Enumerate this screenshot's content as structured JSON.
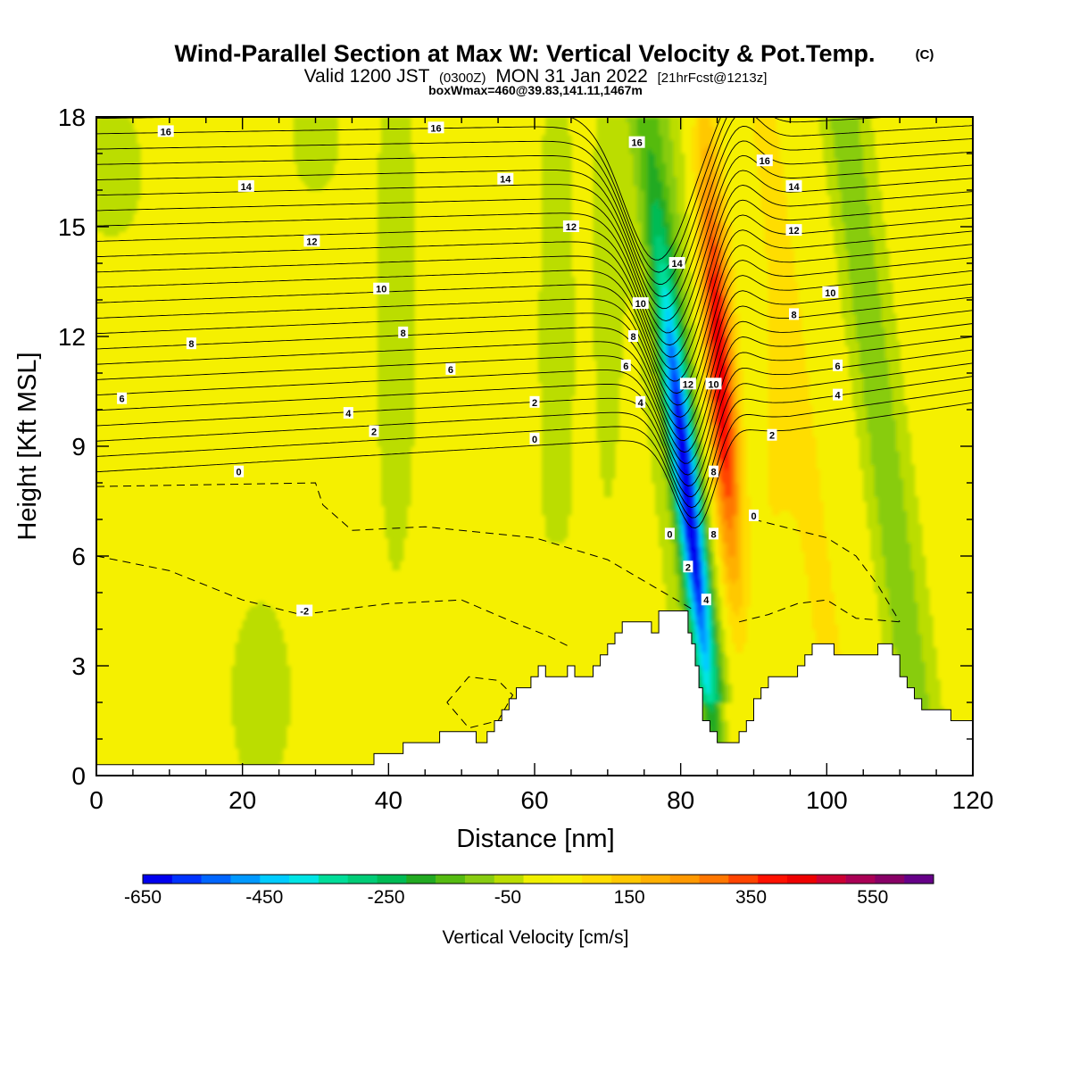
{
  "title": {
    "main": "Wind-Parallel Section at Max W: Vertical Velocity & Pot.Temp.",
    "copyright": "(C)",
    "valid_prefix": "Valid 1200 JST",
    "valid_utc": "(0300Z)",
    "valid_date": "MON 31 Jan 2022",
    "forecast": "[21hrFcst@1213z]",
    "boxinfo": "boxWmax=460@39.83,141.11,1467m"
  },
  "chart_data": {
    "type": "heatmap",
    "xlabel": "Distance [nm]",
    "ylabel": "Height [Kft MSL]",
    "xlim": [
      0,
      120
    ],
    "ylim": [
      0,
      18
    ],
    "x_ticks": [
      "0",
      "20",
      "40",
      "60",
      "80",
      "100",
      "120"
    ],
    "y_ticks": [
      "0",
      "3",
      "6",
      "9",
      "12",
      "15",
      "18"
    ],
    "colorbar": {
      "label": "Vertical Velocity [cm/s]",
      "min": -650,
      "max": 650,
      "step": 50,
      "tick_labels": [
        "-650",
        "-450",
        "-250",
        "-50",
        "150",
        "350",
        "550"
      ],
      "colors": [
        "#0000ee",
        "#0033ff",
        "#0066ff",
        "#0099ff",
        "#00ccff",
        "#00e5e5",
        "#00dd99",
        "#00cc77",
        "#00bb55",
        "#22aa22",
        "#55bb11",
        "#88cc11",
        "#bbdd00",
        "#f0f000",
        "#f5f000",
        "#ffdd00",
        "#ffc800",
        "#ffb000",
        "#ff9900",
        "#ff7700",
        "#ff4400",
        "#ff1100",
        "#ee0000",
        "#cc0033",
        "#aa0055",
        "#880066",
        "#660088"
      ]
    },
    "max_updraft": {
      "x": 85.5,
      "z": 10.5,
      "w": 460
    },
    "max_downdraft": {
      "x": 81,
      "z": 7.5,
      "w": -600
    },
    "theta_contour_labels": [
      {
        "x": 9.5,
        "z": 17.6,
        "label": "16"
      },
      {
        "x": 46.5,
        "z": 17.7,
        "label": "16"
      },
      {
        "x": 74,
        "z": 17.3,
        "label": "16"
      },
      {
        "x": 91.5,
        "z": 16.8,
        "label": "16"
      },
      {
        "x": 20.5,
        "z": 16.1,
        "label": "14"
      },
      {
        "x": 56,
        "z": 16.3,
        "label": "14"
      },
      {
        "x": 95.5,
        "z": 16.1,
        "label": "14"
      },
      {
        "x": 29.5,
        "z": 14.6,
        "label": "12"
      },
      {
        "x": 65,
        "z": 15.0,
        "label": "12"
      },
      {
        "x": 95.5,
        "z": 14.9,
        "label": "12"
      },
      {
        "x": 39,
        "z": 13.3,
        "label": "10"
      },
      {
        "x": 74.5,
        "z": 12.9,
        "label": "10"
      },
      {
        "x": 100.5,
        "z": 13.2,
        "label": "10"
      },
      {
        "x": 79.5,
        "z": 14.0,
        "label": "14"
      },
      {
        "x": 42,
        "z": 12.1,
        "label": "8"
      },
      {
        "x": 13,
        "z": 11.8,
        "label": "8"
      },
      {
        "x": 73.5,
        "z": 12.0,
        "label": "8"
      },
      {
        "x": 95.5,
        "z": 12.6,
        "label": "8"
      },
      {
        "x": 48.5,
        "z": 11.1,
        "label": "6"
      },
      {
        "x": 72.5,
        "z": 11.2,
        "label": "6"
      },
      {
        "x": 101.5,
        "z": 11.2,
        "label": "6"
      },
      {
        "x": 3.5,
        "z": 10.3,
        "label": "6"
      },
      {
        "x": 81,
        "z": 10.7,
        "label": "12"
      },
      {
        "x": 84.5,
        "z": 10.7,
        "label": "10"
      },
      {
        "x": 34.5,
        "z": 9.9,
        "label": "4"
      },
      {
        "x": 74.5,
        "z": 10.2,
        "label": "4"
      },
      {
        "x": 101.5,
        "z": 10.4,
        "label": "4"
      },
      {
        "x": 60,
        "z": 10.2,
        "label": "2"
      },
      {
        "x": 38,
        "z": 9.4,
        "label": "2"
      },
      {
        "x": 92.5,
        "z": 9.3,
        "label": "2"
      },
      {
        "x": 60,
        "z": 9.2,
        "label": "0"
      },
      {
        "x": 19.5,
        "z": 8.3,
        "label": "0"
      },
      {
        "x": 84.5,
        "z": 8.3,
        "label": "8"
      },
      {
        "x": 90,
        "z": 7.1,
        "label": "0"
      },
      {
        "x": 78.5,
        "z": 6.6,
        "label": "0"
      },
      {
        "x": 84.5,
        "z": 6.6,
        "label": "8"
      },
      {
        "x": 81,
        "z": 5.7,
        "label": "2"
      },
      {
        "x": 83.5,
        "z": 4.8,
        "label": "4"
      },
      {
        "x": 28.5,
        "z": 4.5,
        "label": "-2"
      }
    ],
    "terrain_profile": [
      [
        0,
        0.3
      ],
      [
        38,
        0.3
      ],
      [
        38,
        0.6
      ],
      [
        42,
        0.6
      ],
      [
        42,
        0.9
      ],
      [
        47,
        0.9
      ],
      [
        47,
        1.2
      ],
      [
        52,
        1.2
      ],
      [
        52,
        0.9
      ],
      [
        53.5,
        0.9
      ],
      [
        53.5,
        1.2
      ],
      [
        54.5,
        1.2
      ],
      [
        54.5,
        1.5
      ],
      [
        55.5,
        1.5
      ],
      [
        55.5,
        1.8
      ],
      [
        56.5,
        1.8
      ],
      [
        56.5,
        2.1
      ],
      [
        57.5,
        2.1
      ],
      [
        57.5,
        2.4
      ],
      [
        59.5,
        2.4
      ],
      [
        59.5,
        2.7
      ],
      [
        60.5,
        2.7
      ],
      [
        60.5,
        3.0
      ],
      [
        61.5,
        3.0
      ],
      [
        61.5,
        2.7
      ],
      [
        64.5,
        2.7
      ],
      [
        64.5,
        3.0
      ],
      [
        65.5,
        3.0
      ],
      [
        65.5,
        2.7
      ],
      [
        68,
        2.7
      ],
      [
        68,
        3.0
      ],
      [
        69,
        3.0
      ],
      [
        69,
        3.3
      ],
      [
        70,
        3.3
      ],
      [
        70,
        3.6
      ],
      [
        71,
        3.6
      ],
      [
        71,
        3.9
      ],
      [
        72,
        3.9
      ],
      [
        72,
        4.2
      ],
      [
        76,
        4.2
      ],
      [
        76,
        3.9
      ],
      [
        77,
        3.9
      ],
      [
        77,
        4.5
      ],
      [
        81,
        4.5
      ],
      [
        81,
        3.9
      ],
      [
        81.5,
        3.9
      ],
      [
        81.5,
        3.6
      ],
      [
        82,
        3.6
      ],
      [
        82,
        3.0
      ],
      [
        82.5,
        3.0
      ],
      [
        82.5,
        2.4
      ],
      [
        83,
        2.4
      ],
      [
        83,
        1.5
      ],
      [
        84,
        1.5
      ],
      [
        84,
        1.2
      ],
      [
        85,
        1.2
      ],
      [
        85,
        0.9
      ],
      [
        88,
        0.9
      ],
      [
        88,
        1.2
      ],
      [
        89,
        1.2
      ],
      [
        89,
        1.5
      ],
      [
        90,
        1.5
      ],
      [
        90,
        2.1
      ],
      [
        91,
        2.1
      ],
      [
        91,
        2.4
      ],
      [
        92,
        2.4
      ],
      [
        92,
        2.7
      ],
      [
        96,
        2.7
      ],
      [
        96,
        3.0
      ],
      [
        97,
        3.0
      ],
      [
        97,
        3.3
      ],
      [
        98,
        3.3
      ],
      [
        98,
        3.6
      ],
      [
        101,
        3.6
      ],
      [
        101,
        3.3
      ],
      [
        107,
        3.3
      ],
      [
        107,
        3.6
      ],
      [
        109,
        3.6
      ],
      [
        109,
        3.3
      ],
      [
        110,
        3.3
      ],
      [
        110,
        2.7
      ],
      [
        111,
        2.7
      ],
      [
        111,
        2.4
      ],
      [
        112,
        2.4
      ],
      [
        112,
        2.1
      ],
      [
        113,
        2.1
      ],
      [
        113,
        1.8
      ],
      [
        117,
        1.8
      ],
      [
        117,
        1.5
      ],
      [
        120,
        1.5
      ]
    ]
  }
}
